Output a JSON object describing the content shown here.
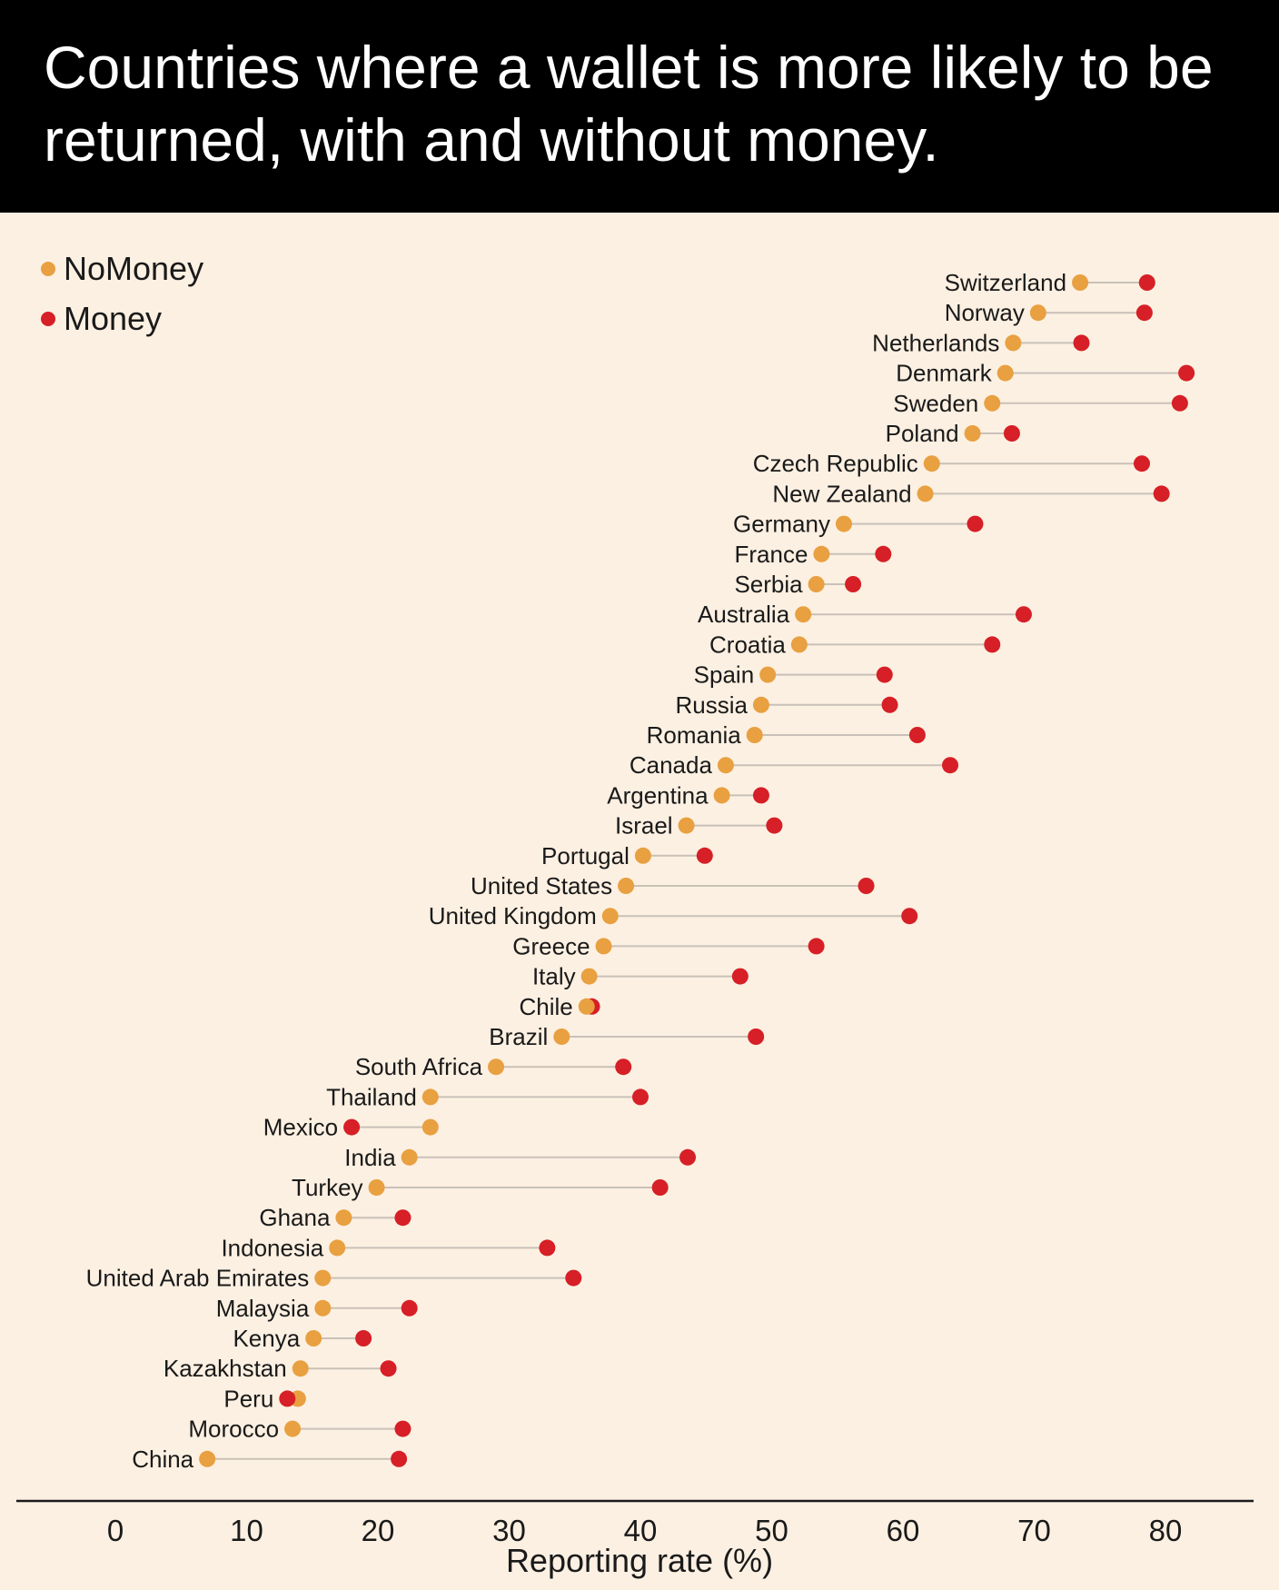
{
  "title": "Countries where a wallet is more likely to be returned, with and without money.",
  "colors": {
    "nomoney": "#e8a040",
    "money": "#d61f26",
    "connector": "#c9c1b8",
    "background": "#fcf0e2"
  },
  "chart_data": {
    "type": "scatter",
    "subtype": "dumbbell",
    "xlabel": "Reporting rate (%)",
    "xlim": [
      0,
      80
    ],
    "xticks": [
      0,
      10,
      20,
      30,
      40,
      50,
      60,
      70,
      80
    ],
    "legend": {
      "placement": "top-left",
      "entries": [
        {
          "key": "nomoney",
          "label": "NoMoney"
        },
        {
          "key": "money",
          "label": "Money"
        }
      ]
    },
    "rows": [
      {
        "country": "Switzerland",
        "nomoney": 73.5,
        "money": 78.6
      },
      {
        "country": "Norway",
        "nomoney": 70.3,
        "money": 78.4
      },
      {
        "country": "Netherlands",
        "nomoney": 68.4,
        "money": 73.6
      },
      {
        "country": "Denmark",
        "nomoney": 67.8,
        "money": 81.6
      },
      {
        "country": "Sweden",
        "nomoney": 66.8,
        "money": 81.1
      },
      {
        "country": "Poland",
        "nomoney": 65.3,
        "money": 68.3
      },
      {
        "country": "Czech Republic",
        "nomoney": 62.2,
        "money": 78.2
      },
      {
        "country": "New Zealand",
        "nomoney": 61.7,
        "money": 79.7
      },
      {
        "country": "Germany",
        "nomoney": 55.5,
        "money": 65.5
      },
      {
        "country": "France",
        "nomoney": 53.8,
        "money": 58.5
      },
      {
        "country": "Serbia",
        "nomoney": 53.4,
        "money": 56.2
      },
      {
        "country": "Australia",
        "nomoney": 52.4,
        "money": 69.2
      },
      {
        "country": "Croatia",
        "nomoney": 52.1,
        "money": 66.8
      },
      {
        "country": "Spain",
        "nomoney": 49.7,
        "money": 58.6
      },
      {
        "country": "Russia",
        "nomoney": 49.2,
        "money": 59.0
      },
      {
        "country": "Romania",
        "nomoney": 48.7,
        "money": 61.1
      },
      {
        "country": "Canada",
        "nomoney": 46.5,
        "money": 63.6
      },
      {
        "country": "Argentina",
        "nomoney": 46.2,
        "money": 49.2
      },
      {
        "country": "Israel",
        "nomoney": 43.5,
        "money": 50.2
      },
      {
        "country": "Portugal",
        "nomoney": 40.2,
        "money": 44.9
      },
      {
        "country": "United States",
        "nomoney": 38.9,
        "money": 57.2
      },
      {
        "country": "United Kingdom",
        "nomoney": 37.7,
        "money": 60.5
      },
      {
        "country": "Greece",
        "nomoney": 37.2,
        "money": 53.4
      },
      {
        "country": "Italy",
        "nomoney": 36.1,
        "money": 47.6
      },
      {
        "country": "Chile",
        "nomoney": 35.9,
        "money": 36.3
      },
      {
        "country": "Brazil",
        "nomoney": 34.0,
        "money": 48.8
      },
      {
        "country": "South Africa",
        "nomoney": 29.0,
        "money": 38.7
      },
      {
        "country": "Thailand",
        "nomoney": 24.0,
        "money": 40.0
      },
      {
        "country": "Mexico",
        "nomoney": 24.0,
        "money": 18.0
      },
      {
        "country": "India",
        "nomoney": 22.4,
        "money": 43.6
      },
      {
        "country": "Turkey",
        "nomoney": 19.9,
        "money": 41.5
      },
      {
        "country": "Ghana",
        "nomoney": 17.4,
        "money": 21.9
      },
      {
        "country": "Indonesia",
        "nomoney": 16.9,
        "money": 32.9
      },
      {
        "country": "United Arab Emirates",
        "nomoney": 15.8,
        "money": 34.9
      },
      {
        "country": "Malaysia",
        "nomoney": 15.8,
        "money": 22.4
      },
      {
        "country": "Kenya",
        "nomoney": 15.1,
        "money": 18.9
      },
      {
        "country": "Kazakhstan",
        "nomoney": 14.1,
        "money": 20.8
      },
      {
        "country": "Peru",
        "nomoney": 13.9,
        "money": 13.1
      },
      {
        "country": "Morocco",
        "nomoney": 13.5,
        "money": 21.9
      },
      {
        "country": "China",
        "nomoney": 7.0,
        "money": 21.6
      }
    ]
  }
}
